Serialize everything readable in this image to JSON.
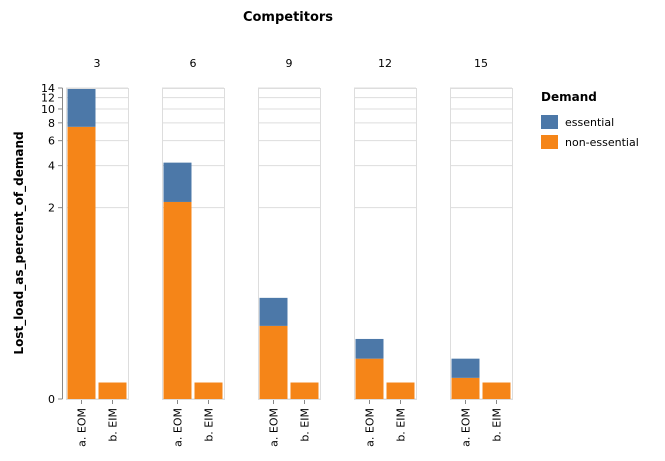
{
  "chart_data": {
    "type": "bar",
    "stacked": true,
    "title": "Competitors",
    "ylabel": "Lost_load_as_percent_of_demand",
    "yscale": "symlog",
    "ylim": [
      0,
      14
    ],
    "yticks": [
      0,
      2,
      4,
      6,
      8,
      10,
      12,
      14
    ],
    "facets": [
      "3",
      "6",
      "9",
      "12",
      "15"
    ],
    "categories": [
      "a. EOM",
      "b. EIM"
    ],
    "legend": {
      "title": "Demand",
      "position": "right"
    },
    "series": [
      {
        "name": "essential",
        "color": "#4c78a8",
        "values": [
          [
            6.5,
            0.0
          ],
          [
            2.0,
            0.0
          ],
          [
            0.18,
            0.0
          ],
          [
            0.07,
            0.0
          ],
          [
            0.05,
            0.0
          ]
        ]
      },
      {
        "name": "non-essential",
        "color": "#f58518",
        "values": [
          [
            7.5,
            0.03
          ],
          [
            2.2,
            0.03
          ],
          [
            0.22,
            0.03
          ],
          [
            0.09,
            0.03
          ],
          [
            0.04,
            0.03
          ]
        ]
      }
    ]
  }
}
